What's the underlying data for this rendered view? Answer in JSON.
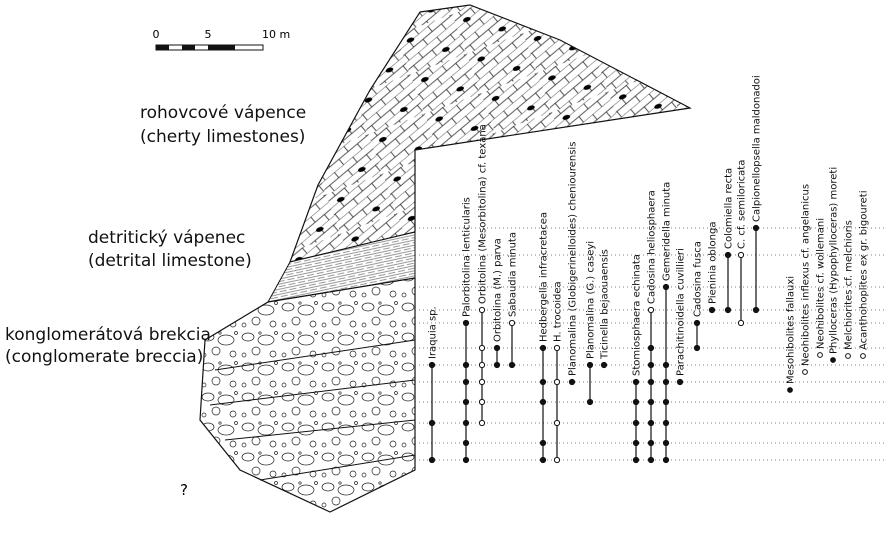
{
  "scale": {
    "labels": [
      "0",
      "5",
      "10 m"
    ]
  },
  "lithology": [
    {
      "name": "rohovcové vápence",
      "translation": "(cherty limestones)"
    },
    {
      "name": "detritický vápenec",
      "translation": "(detrital limestone)"
    },
    {
      "name": "konglomerátová brekcia",
      "translation": "(conglomerate breccia)"
    }
  ],
  "question_mark": "?",
  "taxa": [
    {
      "name": "Iraquia sp."
    },
    {
      "name": "Palorbitolina lenticularis"
    },
    {
      "name": "Orbitolina (Mesorbitolina) cf. texana"
    },
    {
      "name": "Orbitolina (M.) parva"
    },
    {
      "name": "Sabaudia minuta"
    },
    {
      "name": "Hedbergella infracretacea"
    },
    {
      "name": "H. trocoidea"
    },
    {
      "name": "Planomalina (Globigerinelloides) cheniourensis"
    },
    {
      "name": "Planomalina (G.) caseyi"
    },
    {
      "name": "Ticinella bejaouaensis"
    },
    {
      "name": "Stomiosphaera echinata"
    },
    {
      "name": "Cadosina heliosphaera"
    },
    {
      "name": "Gemeridella minuta"
    },
    {
      "name": "Parachitinoidella cuvillieri"
    },
    {
      "name": "Cadosina fusca"
    },
    {
      "name": "Pieninia oblonga"
    },
    {
      "name": "Colomiella recta"
    },
    {
      "name": "C. cf. semiloricata"
    },
    {
      "name": "Calpionellopsella maldonadoi"
    },
    {
      "name": "Mesohibolites fallauxi"
    },
    {
      "name": "Neohibolites inflexus cf. angelanicus"
    },
    {
      "name": "Neohibolites cf. wollemani"
    },
    {
      "name": "Phylloceras (Hypophylloceras) moreti"
    },
    {
      "name": "Melchiorites cf. melchioris"
    },
    {
      "name": "Acanthohoplites ex gr. bigoureti"
    }
  ]
}
